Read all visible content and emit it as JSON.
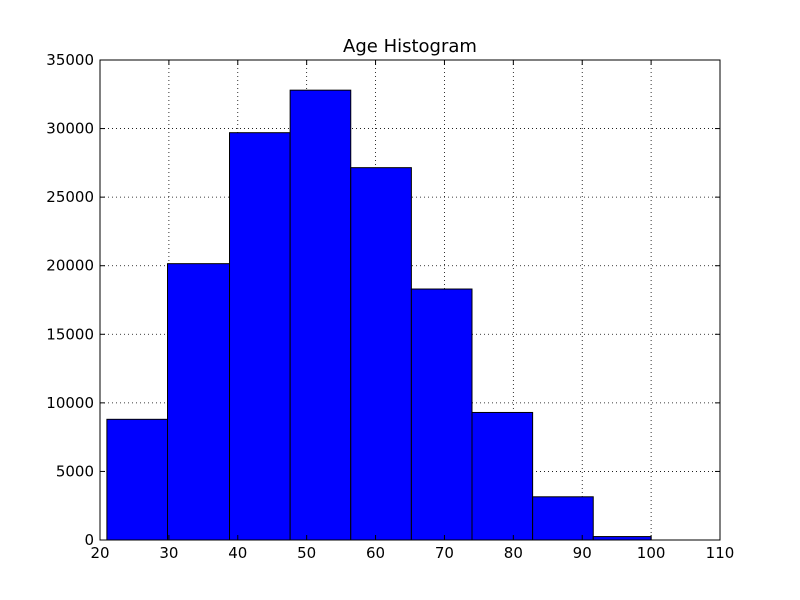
{
  "chart_data": {
    "type": "bar",
    "title": "Age Histogram",
    "xlabel": "",
    "ylabel": "",
    "xlim": [
      20,
      110
    ],
    "ylim": [
      0,
      35000
    ],
    "grid": true,
    "bar_color": "#0000ff",
    "bins": [
      {
        "x0": 21.0,
        "x1": 29.8,
        "value": 8800
      },
      {
        "x0": 29.8,
        "x1": 38.8,
        "value": 20150
      },
      {
        "x0": 38.8,
        "x1": 47.6,
        "value": 29700
      },
      {
        "x0": 47.6,
        "x1": 56.4,
        "value": 32800
      },
      {
        "x0": 56.4,
        "x1": 65.2,
        "value": 27150
      },
      {
        "x0": 65.2,
        "x1": 74.0,
        "value": 18300
      },
      {
        "x0": 74.0,
        "x1": 82.8,
        "value": 9300
      },
      {
        "x0": 82.8,
        "x1": 91.6,
        "value": 3150
      },
      {
        "x0": 91.6,
        "x1": 100.0,
        "value": 250
      }
    ],
    "x_ticks": [
      20,
      30,
      40,
      50,
      60,
      70,
      80,
      90,
      100,
      110
    ],
    "x_tick_labels": [
      "20",
      "30",
      "40",
      "50",
      "60",
      "70",
      "80",
      "90",
      "100",
      "110"
    ],
    "y_ticks": [
      0,
      5000,
      10000,
      15000,
      20000,
      25000,
      30000,
      35000
    ],
    "y_tick_labels": [
      "0",
      "5000",
      "10000",
      "15000",
      "20000",
      "25000",
      "30000",
      "35000"
    ]
  }
}
